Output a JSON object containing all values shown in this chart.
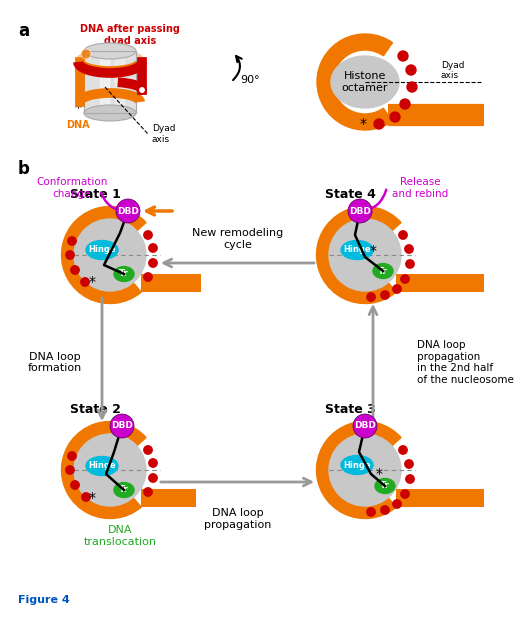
{
  "colors": {
    "orange": "#F07800",
    "dark_red": "#CC0000",
    "magenta": "#CC00CC",
    "cyan": "#00BBDD",
    "green": "#22AA22",
    "gray_arrow": "#999999",
    "light_gray": "#CCCCCC",
    "blue_text": "#0055BB"
  },
  "panel_a": {
    "dna_label": "DNA after passing\ndyad axis",
    "dyad_label": "Dyad\naxis",
    "dna_bottom": "DNA",
    "rotation": "90°",
    "histone": "Histone\noctamer",
    "dyad_right": "Dyad\naxis"
  },
  "panel_b": {
    "state1": "State 1",
    "state2": "State 2",
    "state3": "State 3",
    "state4": "State 4",
    "dbd": "DBD",
    "hinge": "Hinge",
    "tr": "Tr",
    "conform": "Conformation\nchange",
    "release": "Release\nand rebind",
    "new_cycle": "New remodeling\ncycle",
    "dna_loop_form": "DNA loop\nformation",
    "dna_loop_prop": "DNA loop\npropagation",
    "dna_loop_prop2": "DNA loop\npropagation\nin the 2nd half\nof the nucleosome",
    "dna_trans": "DNA\ntranslocation"
  },
  "figure_label": "Figure 4"
}
